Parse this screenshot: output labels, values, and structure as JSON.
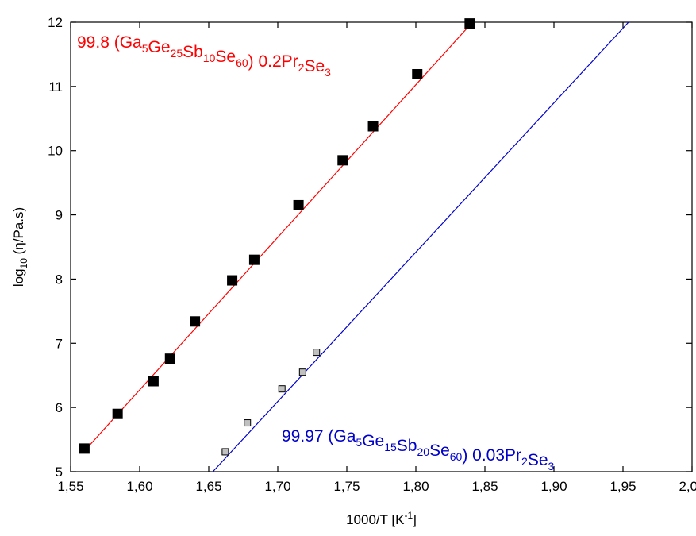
{
  "chart_data": {
    "type": "scatter",
    "title": "",
    "xlabel": {
      "base": "1000/T [K",
      "sup": "-1",
      "end": "]"
    },
    "ylabel": {
      "base": "log",
      "sub": "10",
      "rest": " (η/Pa.s)"
    },
    "xlim": [
      1.55,
      2.0
    ],
    "ylim": [
      5,
      12
    ],
    "x_ticks": [
      1.55,
      1.6,
      1.65,
      1.7,
      1.75,
      1.8,
      1.85,
      1.9,
      1.95,
      2.0
    ],
    "x_tick_labels": [
      "1,55",
      "1,60",
      "1,65",
      "1,70",
      "1,75",
      "1,80",
      "1,85",
      "1,90",
      "1,95",
      "2,00"
    ],
    "y_ticks": [
      5,
      6,
      7,
      8,
      9,
      10,
      11,
      12
    ],
    "y_tick_labels": [
      "5",
      "6",
      "7",
      "8",
      "9",
      "10",
      "11",
      "12"
    ],
    "grid": false,
    "series": [
      {
        "color": "#ff0000",
        "marker_fill": "#000000",
        "marker": "large-square",
        "x": [
          1.56,
          1.584,
          1.61,
          1.622,
          1.64,
          1.667,
          1.683,
          1.715,
          1.747,
          1.769,
          1.801,
          1.839
        ],
        "y": [
          5.36,
          5.9,
          6.41,
          6.76,
          7.34,
          7.98,
          8.3,
          9.15,
          9.85,
          10.38,
          11.19,
          11.98
        ],
        "fit": {
          "x": [
            1.559,
            1.841
          ],
          "y": [
            5.3,
            12.0
          ]
        },
        "label": [
          {
            "t": "99.8 (Ga",
            "sub": false
          },
          {
            "t": "5",
            "sub": true
          },
          {
            "t": "Ge",
            "sub": false
          },
          {
            "t": "25",
            "sub": true
          },
          {
            "t": "Sb",
            "sub": false
          },
          {
            "t": "10",
            "sub": true
          },
          {
            "t": "Se",
            "sub": false
          },
          {
            "t": "60",
            "sub": true
          },
          {
            "t": ") 0.2Pr",
            "sub": false
          },
          {
            "t": "2",
            "sub": true
          },
          {
            "t": "Se",
            "sub": false
          },
          {
            "t": "3",
            "sub": true
          }
        ]
      },
      {
        "color": "#0000cc",
        "marker_fill": "#c0c0c0",
        "marker": "small-square",
        "x": [
          1.662,
          1.678,
          1.703,
          1.718,
          1.728
        ],
        "y": [
          5.31,
          5.76,
          6.29,
          6.55,
          6.86
        ],
        "fit": {
          "x": [
            1.653,
            1.954
          ],
          "y": [
            5.0,
            12.0
          ]
        },
        "label": [
          {
            "t": "99.97 (Ga",
            "sub": false
          },
          {
            "t": "5",
            "sub": true
          },
          {
            "t": "Ge",
            "sub": false
          },
          {
            "t": "15",
            "sub": true
          },
          {
            "t": "Sb",
            "sub": false
          },
          {
            "t": "20",
            "sub": true
          },
          {
            "t": "Se",
            "sub": false
          },
          {
            "t": "60",
            "sub": true
          },
          {
            "t": ") 0.03Pr",
            "sub": false
          },
          {
            "t": "2",
            "sub": true
          },
          {
            "t": "Se",
            "sub": false
          },
          {
            "t": "3",
            "sub": true
          }
        ]
      }
    ]
  }
}
